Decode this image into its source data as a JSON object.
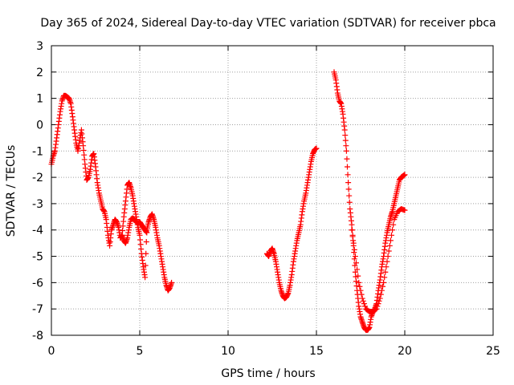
{
  "chart_data": {
    "type": "scatter",
    "title": "Day 365 of 2024, Sidereal Day-to-day VTEC variation (SDTVAR) for receiver pbca",
    "xlabel": "GPS time / hours",
    "ylabel": "SDTVAR / TECUs",
    "xlim": [
      0,
      25
    ],
    "ylim": [
      -8,
      3
    ],
    "x_ticks": [
      "0",
      "5",
      "10",
      "15",
      "20",
      "25"
    ],
    "y_ticks": [
      "-8",
      "-7",
      "-6",
      "-5",
      "-4",
      "-3",
      "-2",
      "-1",
      "0",
      "1",
      "2",
      "3"
    ],
    "grid": true,
    "marker": "+",
    "marker_color": "#ff0000",
    "series": [
      {
        "x": [
          0.0,
          0.1,
          0.2,
          0.3,
          0.4,
          0.5,
          0.6,
          0.7,
          0.8,
          0.9,
          1.0,
          1.1,
          1.2,
          1.3,
          1.4,
          1.5,
          1.6,
          1.7,
          1.8,
          1.9,
          2.0,
          2.1,
          2.2,
          2.3,
          2.4,
          2.5,
          2.6,
          2.7,
          2.8,
          2.9,
          3.0,
          3.1,
          3.2,
          3.3,
          3.4,
          3.5,
          3.6,
          3.7,
          3.8,
          3.9,
          4.0,
          4.1,
          4.2,
          4.3,
          4.4,
          4.5,
          4.6,
          4.7,
          4.8,
          4.9,
          5.0,
          5.1,
          5.2,
          5.3,
          5.4,
          5.5,
          5.6,
          5.7,
          5.8,
          5.9,
          6.0,
          6.1,
          6.2,
          6.3,
          6.4,
          6.5,
          6.6,
          6.7,
          6.8
        ],
        "y": [
          -1.5,
          -1.2,
          -1.0,
          -0.5,
          0.0,
          0.5,
          0.9,
          1.1,
          1.1,
          1.05,
          1.0,
          0.8,
          0.3,
          -0.2,
          -0.7,
          -1.0,
          -0.6,
          -0.2,
          -0.8,
          -1.5,
          -2.1,
          -2.0,
          -1.7,
          -1.2,
          -1.1,
          -1.6,
          -2.2,
          -2.6,
          -2.9,
          -3.2,
          -3.3,
          -3.6,
          -4.2,
          -4.6,
          -4.0,
          -3.8,
          -3.6,
          -3.7,
          -3.9,
          -4.3,
          -4.2,
          -3.5,
          -2.9,
          -2.3,
          -2.2,
          -2.4,
          -2.7,
          -3.1,
          -3.5,
          -3.9,
          -4.2,
          -4.9,
          -5.4,
          -5.8,
          -4.0,
          -3.7,
          -3.5,
          -3.4,
          -3.6,
          -3.9,
          -4.3,
          -4.6,
          -5.0,
          -5.4,
          -5.8,
          -6.1,
          -6.3,
          -6.2,
          -6.0
        ]
      },
      {
        "x": [
          4.0,
          4.1,
          4.2,
          4.3,
          4.4,
          4.5,
          4.6,
          4.7,
          4.8,
          4.9,
          5.0,
          5.1,
          5.2,
          5.3,
          5.4
        ],
        "y": [
          -4.2,
          -4.4,
          -4.5,
          -4.3,
          -3.9,
          -3.6,
          -3.55,
          -3.6,
          -3.7,
          -3.75,
          -3.7,
          -3.8,
          -3.9,
          -4.0,
          -4.1
        ]
      },
      {
        "x": [
          12.2,
          12.3,
          12.4,
          12.5,
          12.6,
          12.7,
          12.8,
          12.9,
          13.0,
          13.1,
          13.2,
          13.3,
          13.4,
          13.5,
          13.6,
          13.7,
          13.8,
          13.9,
          14.0,
          14.1,
          14.2,
          14.3,
          14.4,
          14.5,
          14.6,
          14.7,
          14.8,
          14.9,
          15.0
        ],
        "y": [
          -4.9,
          -5.0,
          -4.8,
          -4.7,
          -4.9,
          -5.2,
          -5.6,
          -6.0,
          -6.3,
          -6.5,
          -6.6,
          -6.55,
          -6.4,
          -6.1,
          -5.7,
          -5.2,
          -4.8,
          -4.4,
          -4.1,
          -3.8,
          -3.3,
          -2.9,
          -2.6,
          -2.2,
          -1.8,
          -1.4,
          -1.1,
          -0.95,
          -0.9
        ]
      },
      {
        "x": [
          16.0,
          16.1,
          16.2,
          16.3,
          16.4,
          16.5,
          16.6,
          16.7,
          16.8,
          16.9,
          17.0,
          17.1,
          17.2,
          17.3,
          17.4,
          17.5,
          17.6,
          17.7,
          17.8,
          17.9,
          18.0,
          18.1,
          18.2,
          18.3,
          18.4,
          18.5,
          18.6,
          18.7,
          18.8,
          18.9,
          19.0,
          19.1,
          19.2,
          19.3,
          19.4,
          19.5,
          19.6,
          19.7,
          19.8,
          19.9,
          20.0
        ],
        "y": [
          2.0,
          1.7,
          1.2,
          0.9,
          0.8,
          0.4,
          -0.2,
          -1.0,
          -2.2,
          -3.2,
          -3.8,
          -4.6,
          -5.6,
          -6.3,
          -6.9,
          -7.3,
          -7.5,
          -7.7,
          -7.8,
          -7.8,
          -7.7,
          -7.3,
          -7.1,
          -7.0,
          -6.8,
          -6.3,
          -5.9,
          -5.4,
          -5.0,
          -4.5,
          -4.1,
          -3.8,
          -3.5,
          -3.3,
          -3.0,
          -2.7,
          -2.4,
          -2.1,
          -2.0,
          -1.95,
          -1.9
        ]
      },
      {
        "x": [
          17.0,
          17.2,
          17.4,
          17.6,
          17.8,
          18.0,
          18.2,
          18.4,
          18.6,
          18.8,
          19.0,
          19.2,
          19.4,
          19.6,
          19.8,
          20.0
        ],
        "y": [
          -4.0,
          -5.0,
          -6.0,
          -6.6,
          -7.0,
          -7.1,
          -7.1,
          -7.0,
          -6.6,
          -6.0,
          -5.2,
          -4.4,
          -3.6,
          -3.3,
          -3.2,
          -3.25
        ]
      }
    ]
  }
}
